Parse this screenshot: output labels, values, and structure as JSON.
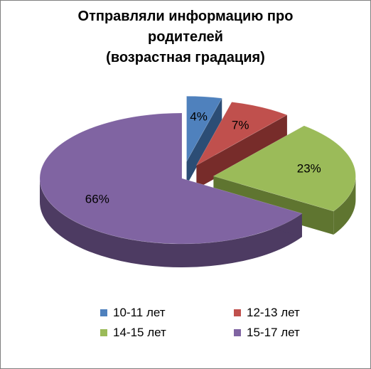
{
  "chart_data": {
    "type": "pie",
    "style": "3d-exploded",
    "title_lines": [
      "Отправляли информацию про",
      "родителей",
      "(возрастная градация)"
    ],
    "categories": [
      "10-11 лет",
      "12-13 лет",
      "14-15 лет",
      "15-17 лет"
    ],
    "values": [
      4,
      7,
      23,
      66
    ],
    "data_labels": [
      "4%",
      "7%",
      "23%",
      "66%"
    ],
    "colors": [
      "#4f81bd",
      "#c0504d",
      "#9bbb59",
      "#8064a2"
    ],
    "dark_colors": [
      "#2c4d75",
      "#772c2a",
      "#5f7530",
      "#4d3b62"
    ],
    "legend_position": "bottom"
  }
}
